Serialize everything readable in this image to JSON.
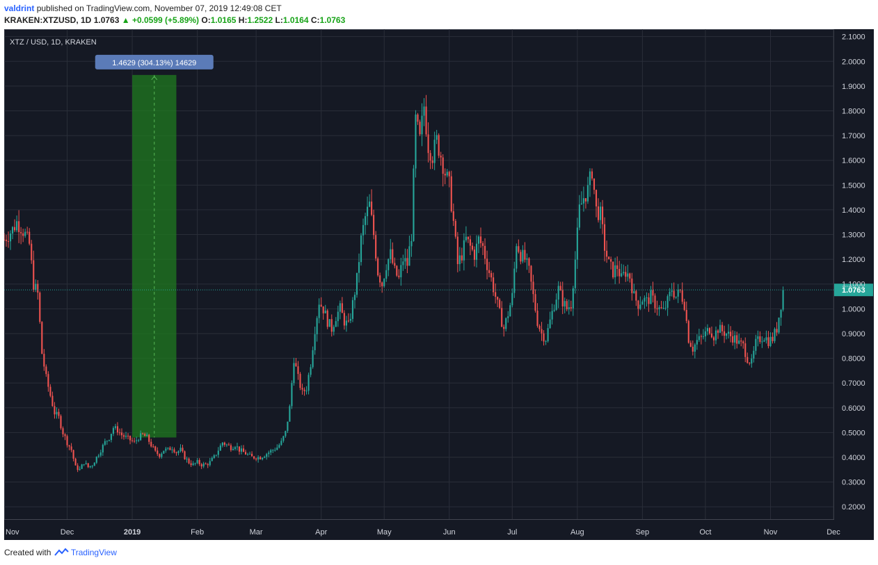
{
  "header": {
    "author": "valdrint",
    "published_text": "published on TradingView.com, November 07, 2019 12:49:08 CET",
    "symbol_line": "KRAKEN:XTZUSD, 1D",
    "last_price": "1.0763",
    "change": "+0.0599 (+5.89%)",
    "o_label": "O:",
    "o_value": "1.0165",
    "h_label": "H:",
    "h_value": "1.2522",
    "l_label": "L:",
    "l_value": "1.0164",
    "c_label": "C:",
    "c_value": "1.0763"
  },
  "footer": {
    "created_with": "Created with",
    "brand": "TradingView"
  },
  "colors": {
    "background": "#151924",
    "grid": "#2a2e39",
    "up": "#26a69a",
    "down": "#ef5350",
    "price_line": "#26a69a",
    "measure_fill": "#1f7a1f",
    "measure_label_bg": "#5b7bb8"
  },
  "chart_data": {
    "type": "candlestick",
    "title": "XTZ / USD, 1D, KRAKEN",
    "y_axis": {
      "ticks": [
        2.1,
        2.0,
        1.9,
        1.8,
        1.7,
        1.6,
        1.5,
        1.4,
        1.3,
        1.2,
        1.1,
        1.0,
        0.9,
        0.8,
        0.7,
        0.6,
        0.5,
        0.4,
        0.3,
        0.2
      ],
      "tick_labels": [
        "2.1000",
        "2.0000",
        "1.9000",
        "1.8000",
        "1.7000",
        "1.6000",
        "1.5000",
        "1.4000",
        "1.3000",
        "1.2000",
        "1.1000",
        "1.0000",
        "0.9000",
        "0.8000",
        "0.7000",
        "0.6000",
        "0.5000",
        "0.4000",
        "0.3000",
        "0.2000"
      ],
      "range": [
        0.15,
        2.13
      ],
      "position": "right"
    },
    "x_axis": {
      "start": "2018-11-01",
      "end": "2019-12-01",
      "ticks": [
        {
          "date": "2018-11-01",
          "label": "Nov",
          "bold": false
        },
        {
          "date": "2018-12-01",
          "label": "Dec",
          "bold": false
        },
        {
          "date": "2019-01-01",
          "label": "2019",
          "bold": true
        },
        {
          "date": "2019-02-01",
          "label": "Feb",
          "bold": false
        },
        {
          "date": "2019-03-01",
          "label": "Mar",
          "bold": false
        },
        {
          "date": "2019-04-01",
          "label": "Apr",
          "bold": false
        },
        {
          "date": "2019-05-01",
          "label": "May",
          "bold": false
        },
        {
          "date": "2019-06-01",
          "label": "Jun",
          "bold": false
        },
        {
          "date": "2019-07-01",
          "label": "Jul",
          "bold": false
        },
        {
          "date": "2019-08-01",
          "label": "Aug",
          "bold": false
        },
        {
          "date": "2019-09-01",
          "label": "Sep",
          "bold": false
        },
        {
          "date": "2019-10-01",
          "label": "Oct",
          "bold": false
        },
        {
          "date": "2019-11-01",
          "label": "Nov",
          "bold": false
        },
        {
          "date": "2019-12-01",
          "label": "Dec",
          "bold": false
        }
      ]
    },
    "price_path": [
      [
        "2018-11-01",
        1.28
      ],
      [
        "2018-11-03",
        1.3
      ],
      [
        "2018-11-05",
        1.32
      ],
      [
        "2018-11-07",
        1.35
      ],
      [
        "2018-11-09",
        1.33
      ],
      [
        "2018-11-11",
        1.3
      ],
      [
        "2018-11-13",
        1.26
      ],
      [
        "2018-11-15",
        1.1
      ],
      [
        "2018-11-17",
        1.06
      ],
      [
        "2018-11-19",
        0.82
      ],
      [
        "2018-11-21",
        0.72
      ],
      [
        "2018-11-23",
        0.65
      ],
      [
        "2018-11-25",
        0.58
      ],
      [
        "2018-11-27",
        0.56
      ],
      [
        "2018-11-29",
        0.5
      ],
      [
        "2018-12-01",
        0.46
      ],
      [
        "2018-12-03",
        0.43
      ],
      [
        "2018-12-05",
        0.36
      ],
      [
        "2018-12-07",
        0.35
      ],
      [
        "2018-12-09",
        0.38
      ],
      [
        "2018-12-11",
        0.36
      ],
      [
        "2018-12-13",
        0.37
      ],
      [
        "2018-12-15",
        0.4
      ],
      [
        "2018-12-17",
        0.43
      ],
      [
        "2018-12-19",
        0.46
      ],
      [
        "2018-12-21",
        0.48
      ],
      [
        "2018-12-23",
        0.52
      ],
      [
        "2018-12-25",
        0.51
      ],
      [
        "2018-12-27",
        0.49
      ],
      [
        "2018-12-29",
        0.48
      ],
      [
        "2018-12-31",
        0.47
      ],
      [
        "2019-01-02",
        0.46
      ],
      [
        "2019-01-04",
        0.48
      ],
      [
        "2019-01-06",
        0.49
      ],
      [
        "2019-01-08",
        0.48
      ],
      [
        "2019-01-10",
        0.45
      ],
      [
        "2019-01-12",
        0.42
      ],
      [
        "2019-01-14",
        0.41
      ],
      [
        "2019-01-16",
        0.43
      ],
      [
        "2019-01-18",
        0.43
      ],
      [
        "2019-01-20",
        0.44
      ],
      [
        "2019-01-22",
        0.42
      ],
      [
        "2019-01-24",
        0.43
      ],
      [
        "2019-01-26",
        0.4
      ],
      [
        "2019-01-28",
        0.38
      ],
      [
        "2019-01-30",
        0.37
      ],
      [
        "2019-02-01",
        0.38
      ],
      [
        "2019-02-03",
        0.37
      ],
      [
        "2019-02-05",
        0.37
      ],
      [
        "2019-02-07",
        0.38
      ],
      [
        "2019-02-09",
        0.4
      ],
      [
        "2019-02-11",
        0.43
      ],
      [
        "2019-02-13",
        0.46
      ],
      [
        "2019-02-15",
        0.45
      ],
      [
        "2019-02-17",
        0.44
      ],
      [
        "2019-02-19",
        0.45
      ],
      [
        "2019-02-21",
        0.43
      ],
      [
        "2019-02-23",
        0.42
      ],
      [
        "2019-02-25",
        0.41
      ],
      [
        "2019-02-27",
        0.4
      ],
      [
        "2019-03-01",
        0.4
      ],
      [
        "2019-03-03",
        0.4
      ],
      [
        "2019-03-05",
        0.41
      ],
      [
        "2019-03-07",
        0.42
      ],
      [
        "2019-03-09",
        0.43
      ],
      [
        "2019-03-11",
        0.44
      ],
      [
        "2019-03-13",
        0.46
      ],
      [
        "2019-03-15",
        0.5
      ],
      [
        "2019-03-17",
        0.6
      ],
      [
        "2019-03-19",
        0.8
      ],
      [
        "2019-03-21",
        0.72
      ],
      [
        "2019-03-23",
        0.66
      ],
      [
        "2019-03-25",
        0.68
      ],
      [
        "2019-03-27",
        0.78
      ],
      [
        "2019-03-29",
        0.92
      ],
      [
        "2019-03-31",
        1.03
      ],
      [
        "2019-04-02",
        1.0
      ],
      [
        "2019-04-04",
        0.95
      ],
      [
        "2019-04-06",
        0.92
      ],
      [
        "2019-04-08",
        0.97
      ],
      [
        "2019-04-10",
        1.0
      ],
      [
        "2019-04-12",
        0.95
      ],
      [
        "2019-04-14",
        0.93
      ],
      [
        "2019-04-16",
        1.02
      ],
      [
        "2019-04-18",
        1.12
      ],
      [
        "2019-04-20",
        1.28
      ],
      [
        "2019-04-22",
        1.37
      ],
      [
        "2019-04-24",
        1.42
      ],
      [
        "2019-04-26",
        1.3
      ],
      [
        "2019-04-28",
        1.15
      ],
      [
        "2019-04-30",
        1.1
      ],
      [
        "2019-05-02",
        1.18
      ],
      [
        "2019-05-04",
        1.22
      ],
      [
        "2019-05-06",
        1.15
      ],
      [
        "2019-05-08",
        1.12
      ],
      [
        "2019-05-10",
        1.2
      ],
      [
        "2019-05-12",
        1.18
      ],
      [
        "2019-05-14",
        1.3
      ],
      [
        "2019-05-16",
        1.76
      ],
      [
        "2019-05-18",
        1.68
      ],
      [
        "2019-05-20",
        1.82
      ],
      [
        "2019-05-22",
        1.66
      ],
      [
        "2019-05-24",
        1.62
      ],
      [
        "2019-05-26",
        1.68
      ],
      [
        "2019-05-28",
        1.62
      ],
      [
        "2019-05-30",
        1.55
      ],
      [
        "2019-06-01",
        1.5
      ],
      [
        "2019-06-03",
        1.35
      ],
      [
        "2019-06-05",
        1.18
      ],
      [
        "2019-06-07",
        1.22
      ],
      [
        "2019-06-09",
        1.28
      ],
      [
        "2019-06-11",
        1.25
      ],
      [
        "2019-06-13",
        1.22
      ],
      [
        "2019-06-15",
        1.28
      ],
      [
        "2019-06-17",
        1.25
      ],
      [
        "2019-06-19",
        1.18
      ],
      [
        "2019-06-21",
        1.12
      ],
      [
        "2019-06-23",
        1.05
      ],
      [
        "2019-06-25",
        0.98
      ],
      [
        "2019-06-27",
        0.92
      ],
      [
        "2019-06-29",
        0.98
      ],
      [
        "2019-07-01",
        1.05
      ],
      [
        "2019-07-03",
        1.27
      ],
      [
        "2019-07-05",
        1.22
      ],
      [
        "2019-07-07",
        1.2
      ],
      [
        "2019-07-09",
        1.15
      ],
      [
        "2019-07-11",
        1.05
      ],
      [
        "2019-07-13",
        0.95
      ],
      [
        "2019-07-15",
        0.9
      ],
      [
        "2019-07-17",
        0.88
      ],
      [
        "2019-07-19",
        0.95
      ],
      [
        "2019-07-21",
        1.02
      ],
      [
        "2019-07-23",
        1.08
      ],
      [
        "2019-07-25",
        1.03
      ],
      [
        "2019-07-27",
        1.0
      ],
      [
        "2019-07-29",
        1.02
      ],
      [
        "2019-07-31",
        1.2
      ],
      [
        "2019-08-02",
        1.4
      ],
      [
        "2019-08-04",
        1.45
      ],
      [
        "2019-08-06",
        1.48
      ],
      [
        "2019-08-08",
        1.56
      ],
      [
        "2019-08-10",
        1.4
      ],
      [
        "2019-08-12",
        1.38
      ],
      [
        "2019-08-14",
        1.25
      ],
      [
        "2019-08-16",
        1.18
      ],
      [
        "2019-08-18",
        1.15
      ],
      [
        "2019-08-20",
        1.17
      ],
      [
        "2019-08-22",
        1.12
      ],
      [
        "2019-08-24",
        1.15
      ],
      [
        "2019-08-26",
        1.13
      ],
      [
        "2019-08-28",
        1.05
      ],
      [
        "2019-08-30",
        1.02
      ],
      [
        "2019-09-01",
        1.04
      ],
      [
        "2019-09-03",
        1.03
      ],
      [
        "2019-09-05",
        1.05
      ],
      [
        "2019-09-07",
        1.02
      ],
      [
        "2019-09-09",
        1.0
      ],
      [
        "2019-09-11",
        0.99
      ],
      [
        "2019-09-13",
        1.03
      ],
      [
        "2019-09-15",
        1.08
      ],
      [
        "2019-09-17",
        1.05
      ],
      [
        "2019-09-19",
        1.07
      ],
      [
        "2019-09-21",
        1.02
      ],
      [
        "2019-09-23",
        0.88
      ],
      [
        "2019-09-25",
        0.84
      ],
      [
        "2019-09-27",
        0.87
      ],
      [
        "2019-09-29",
        0.88
      ],
      [
        "2019-10-01",
        0.9
      ],
      [
        "2019-10-03",
        0.92
      ],
      [
        "2019-10-05",
        0.89
      ],
      [
        "2019-10-07",
        0.92
      ],
      [
        "2019-10-09",
        0.91
      ],
      [
        "2019-10-11",
        0.9
      ],
      [
        "2019-10-13",
        0.89
      ],
      [
        "2019-10-15",
        0.88
      ],
      [
        "2019-10-17",
        0.86
      ],
      [
        "2019-10-19",
        0.85
      ],
      [
        "2019-10-21",
        0.8
      ],
      [
        "2019-10-23",
        0.78
      ],
      [
        "2019-10-25",
        0.86
      ],
      [
        "2019-10-27",
        0.88
      ],
      [
        "2019-10-29",
        0.89
      ],
      [
        "2019-10-31",
        0.87
      ],
      [
        "2019-11-02",
        0.88
      ],
      [
        "2019-11-04",
        0.92
      ],
      [
        "2019-11-06",
        1.02
      ],
      [
        "2019-11-07",
        1.0763
      ]
    ],
    "last_price": {
      "value": 1.0763,
      "label": "1.0763"
    },
    "measure": {
      "start": "2019-01-01",
      "end": "2019-01-22",
      "low": 0.48,
      "high": 1.945,
      "label": "1.4629 (304.13%) 14629"
    }
  }
}
